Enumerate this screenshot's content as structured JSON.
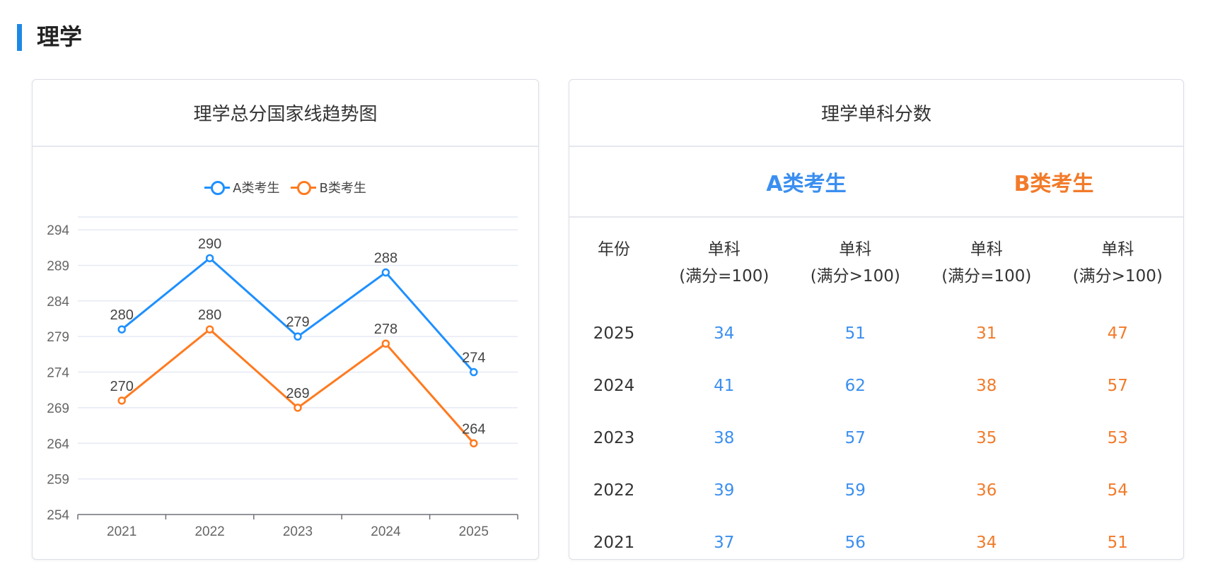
{
  "section": {
    "title": "理学"
  },
  "left_card": {
    "title": "理学总分国家线趋势图"
  },
  "colors": {
    "accent": "#1e88e5",
    "series_a": "#1e90ff",
    "series_b": "#ff7a1f",
    "grid": "#e6e9f5",
    "axis": "#6e7079"
  },
  "chart_data": {
    "type": "line",
    "categories": [
      "2021",
      "2022",
      "2023",
      "2024",
      "2025"
    ],
    "series": [
      {
        "name": "A类考生",
        "values": [
          280,
          290,
          279,
          288,
          274
        ]
      },
      {
        "name": "B类考生",
        "values": [
          270,
          280,
          269,
          278,
          264
        ]
      }
    ],
    "yticks": [
      254,
      259,
      264,
      269,
      274,
      279,
      284,
      289,
      294
    ],
    "ylim": [
      254,
      295
    ],
    "legend_position": "top-center",
    "grid": true,
    "data_labels": true
  },
  "right_card": {
    "title": "理学单科分数",
    "group_a": "A类考生",
    "group_b": "B类考生",
    "headers": {
      "year": "年份",
      "col1_line1": "单科",
      "col1_line2": "(满分=100)",
      "col2_line1": "单科",
      "col2_line2": "(满分>100)",
      "col3_line1": "单科",
      "col3_line2": "(满分=100)",
      "col4_line1": "单科",
      "col4_line2": "(满分>100)"
    },
    "rows": [
      {
        "year": "2025",
        "a100": "34",
        "aover": "51",
        "b100": "31",
        "bover": "47"
      },
      {
        "year": "2024",
        "a100": "41",
        "aover": "62",
        "b100": "38",
        "bover": "57"
      },
      {
        "year": "2023",
        "a100": "38",
        "aover": "57",
        "b100": "35",
        "bover": "53"
      },
      {
        "year": "2022",
        "a100": "39",
        "aover": "59",
        "b100": "36",
        "bover": "54"
      },
      {
        "year": "2021",
        "a100": "37",
        "aover": "56",
        "b100": "34",
        "bover": "51"
      }
    ]
  }
}
